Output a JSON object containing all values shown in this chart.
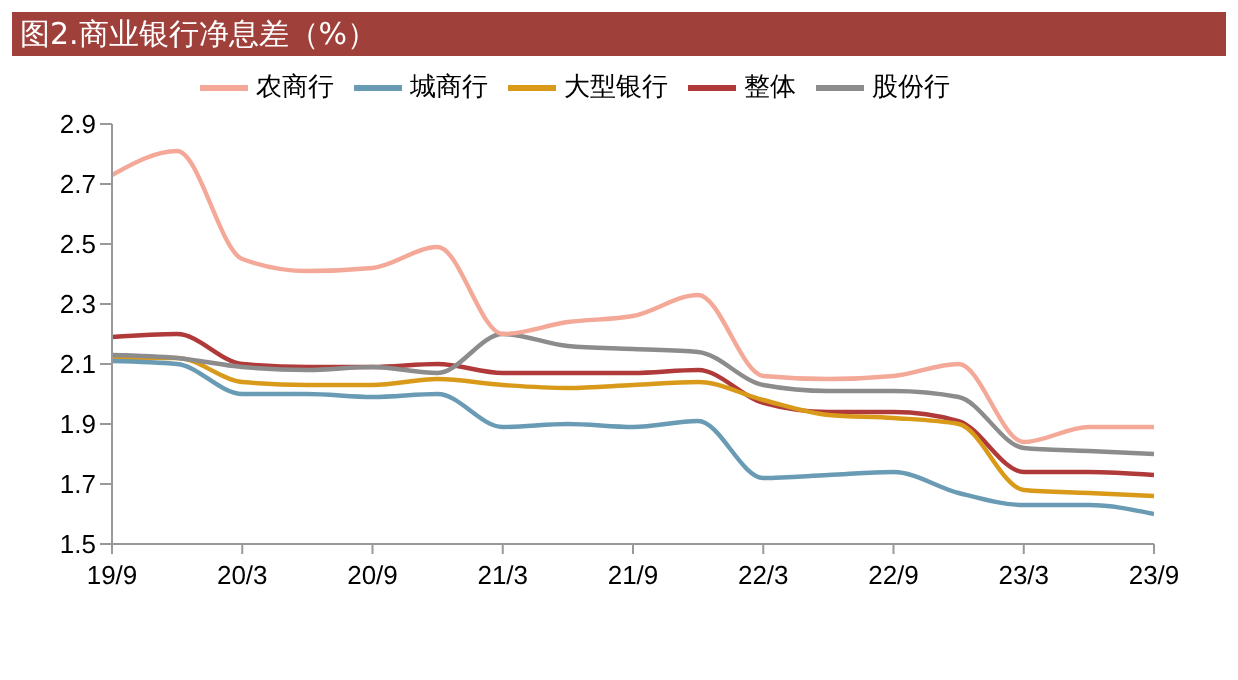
{
  "chart_data": {
    "type": "line",
    "title": "图2.商业银行净息差（%）",
    "categories": [
      "19/9",
      null,
      "20/3",
      null,
      "20/9",
      null,
      "21/3",
      null,
      "21/9",
      null,
      "22/3",
      null,
      "22/9",
      null,
      "23/3",
      null,
      "23/9"
    ],
    "series": [
      {
        "name": "整体",
        "color": "#b03a3a",
        "values": [
          2.19,
          2.2,
          2.1,
          2.09,
          2.09,
          2.1,
          2.07,
          2.07,
          2.07,
          2.08,
          1.97,
          1.94,
          1.94,
          1.91,
          1.74,
          1.74,
          1.73
        ]
      },
      {
        "name": "大型银行",
        "color": "#d99a1a",
        "values": [
          2.12,
          2.12,
          2.04,
          2.03,
          2.03,
          2.05,
          2.03,
          2.02,
          2.03,
          2.04,
          1.98,
          1.93,
          1.92,
          1.9,
          1.68,
          1.67,
          1.66
        ]
      },
      {
        "name": "城商行",
        "color": "#6a9bb5",
        "values": [
          2.11,
          2.1,
          2.0,
          2.0,
          1.99,
          2.0,
          1.89,
          1.9,
          1.89,
          1.91,
          1.72,
          1.73,
          1.74,
          1.67,
          1.63,
          1.63,
          1.6
        ]
      },
      {
        "name": "股份行",
        "color": "#8c8c8c",
        "values": [
          2.13,
          2.12,
          2.09,
          2.08,
          2.09,
          2.07,
          2.2,
          2.16,
          2.15,
          2.14,
          2.03,
          2.01,
          2.01,
          1.99,
          1.82,
          1.81,
          1.8
        ]
      },
      {
        "name": "农商行",
        "color": "#f4a898",
        "values": [
          2.73,
          2.81,
          2.45,
          2.41,
          2.42,
          2.49,
          2.2,
          2.24,
          2.26,
          2.33,
          2.06,
          2.05,
          2.06,
          2.1,
          1.84,
          1.89,
          1.89
        ]
      }
    ],
    "ylim": [
      1.5,
      2.9
    ],
    "yticks": [
      1.5,
      1.7,
      1.9,
      2.1,
      2.3,
      2.5,
      2.7,
      2.9
    ],
    "legend": "top",
    "marker": "none"
  }
}
